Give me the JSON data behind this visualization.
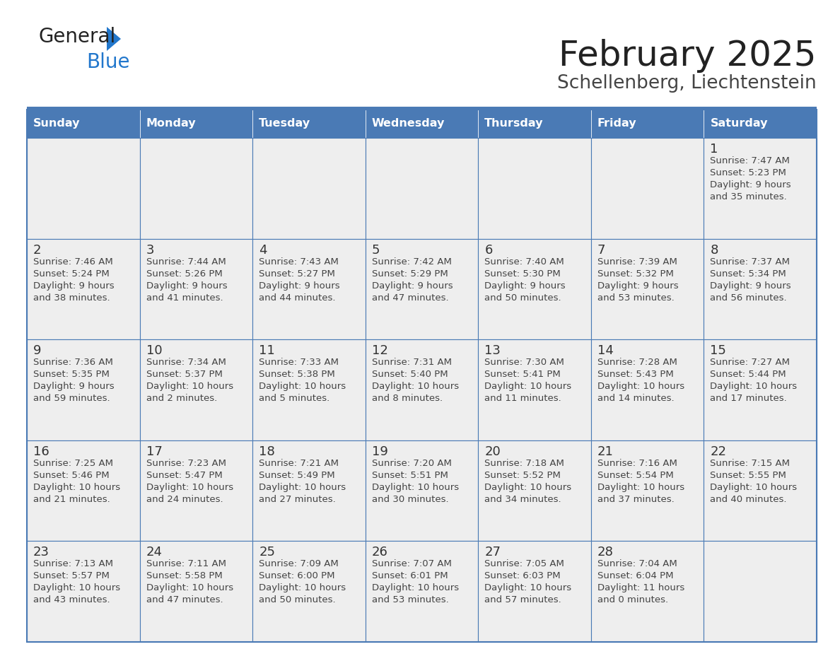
{
  "title": "February 2025",
  "subtitle": "Schellenberg, Liechtenstein",
  "days_of_week": [
    "Sunday",
    "Monday",
    "Tuesday",
    "Wednesday",
    "Thursday",
    "Friday",
    "Saturday"
  ],
  "header_bg_color": "#4a7ab5",
  "header_text_color": "#ffffff",
  "cell_bg_color": "#eeeeee",
  "border_color": "#4a7ab5",
  "day_number_color": "#333333",
  "text_color": "#444444",
  "title_color": "#222222",
  "subtitle_color": "#444444",
  "logo_general_color": "#222222",
  "logo_blue_color": "#2277cc",
  "weeks": [
    [
      {
        "day": null,
        "sunrise": null,
        "sunset": null,
        "daylight_line1": null,
        "daylight_line2": null
      },
      {
        "day": null,
        "sunrise": null,
        "sunset": null,
        "daylight_line1": null,
        "daylight_line2": null
      },
      {
        "day": null,
        "sunrise": null,
        "sunset": null,
        "daylight_line1": null,
        "daylight_line2": null
      },
      {
        "day": null,
        "sunrise": null,
        "sunset": null,
        "daylight_line1": null,
        "daylight_line2": null
      },
      {
        "day": null,
        "sunrise": null,
        "sunset": null,
        "daylight_line1": null,
        "daylight_line2": null
      },
      {
        "day": null,
        "sunrise": null,
        "sunset": null,
        "daylight_line1": null,
        "daylight_line2": null
      },
      {
        "day": 1,
        "sunrise": "7:47 AM",
        "sunset": "5:23 PM",
        "daylight_line1": "Daylight: 9 hours",
        "daylight_line2": "and 35 minutes."
      }
    ],
    [
      {
        "day": 2,
        "sunrise": "7:46 AM",
        "sunset": "5:24 PM",
        "daylight_line1": "Daylight: 9 hours",
        "daylight_line2": "and 38 minutes."
      },
      {
        "day": 3,
        "sunrise": "7:44 AM",
        "sunset": "5:26 PM",
        "daylight_line1": "Daylight: 9 hours",
        "daylight_line2": "and 41 minutes."
      },
      {
        "day": 4,
        "sunrise": "7:43 AM",
        "sunset": "5:27 PM",
        "daylight_line1": "Daylight: 9 hours",
        "daylight_line2": "and 44 minutes."
      },
      {
        "day": 5,
        "sunrise": "7:42 AM",
        "sunset": "5:29 PM",
        "daylight_line1": "Daylight: 9 hours",
        "daylight_line2": "and 47 minutes."
      },
      {
        "day": 6,
        "sunrise": "7:40 AM",
        "sunset": "5:30 PM",
        "daylight_line1": "Daylight: 9 hours",
        "daylight_line2": "and 50 minutes."
      },
      {
        "day": 7,
        "sunrise": "7:39 AM",
        "sunset": "5:32 PM",
        "daylight_line1": "Daylight: 9 hours",
        "daylight_line2": "and 53 minutes."
      },
      {
        "day": 8,
        "sunrise": "7:37 AM",
        "sunset": "5:34 PM",
        "daylight_line1": "Daylight: 9 hours",
        "daylight_line2": "and 56 minutes."
      }
    ],
    [
      {
        "day": 9,
        "sunrise": "7:36 AM",
        "sunset": "5:35 PM",
        "daylight_line1": "Daylight: 9 hours",
        "daylight_line2": "and 59 minutes."
      },
      {
        "day": 10,
        "sunrise": "7:34 AM",
        "sunset": "5:37 PM",
        "daylight_line1": "Daylight: 10 hours",
        "daylight_line2": "and 2 minutes."
      },
      {
        "day": 11,
        "sunrise": "7:33 AM",
        "sunset": "5:38 PM",
        "daylight_line1": "Daylight: 10 hours",
        "daylight_line2": "and 5 minutes."
      },
      {
        "day": 12,
        "sunrise": "7:31 AM",
        "sunset": "5:40 PM",
        "daylight_line1": "Daylight: 10 hours",
        "daylight_line2": "and 8 minutes."
      },
      {
        "day": 13,
        "sunrise": "7:30 AM",
        "sunset": "5:41 PM",
        "daylight_line1": "Daylight: 10 hours",
        "daylight_line2": "and 11 minutes."
      },
      {
        "day": 14,
        "sunrise": "7:28 AM",
        "sunset": "5:43 PM",
        "daylight_line1": "Daylight: 10 hours",
        "daylight_line2": "and 14 minutes."
      },
      {
        "day": 15,
        "sunrise": "7:27 AM",
        "sunset": "5:44 PM",
        "daylight_line1": "Daylight: 10 hours",
        "daylight_line2": "and 17 minutes."
      }
    ],
    [
      {
        "day": 16,
        "sunrise": "7:25 AM",
        "sunset": "5:46 PM",
        "daylight_line1": "Daylight: 10 hours",
        "daylight_line2": "and 21 minutes."
      },
      {
        "day": 17,
        "sunrise": "7:23 AM",
        "sunset": "5:47 PM",
        "daylight_line1": "Daylight: 10 hours",
        "daylight_line2": "and 24 minutes."
      },
      {
        "day": 18,
        "sunrise": "7:21 AM",
        "sunset": "5:49 PM",
        "daylight_line1": "Daylight: 10 hours",
        "daylight_line2": "and 27 minutes."
      },
      {
        "day": 19,
        "sunrise": "7:20 AM",
        "sunset": "5:51 PM",
        "daylight_line1": "Daylight: 10 hours",
        "daylight_line2": "and 30 minutes."
      },
      {
        "day": 20,
        "sunrise": "7:18 AM",
        "sunset": "5:52 PM",
        "daylight_line1": "Daylight: 10 hours",
        "daylight_line2": "and 34 minutes."
      },
      {
        "day": 21,
        "sunrise": "7:16 AM",
        "sunset": "5:54 PM",
        "daylight_line1": "Daylight: 10 hours",
        "daylight_line2": "and 37 minutes."
      },
      {
        "day": 22,
        "sunrise": "7:15 AM",
        "sunset": "5:55 PM",
        "daylight_line1": "Daylight: 10 hours",
        "daylight_line2": "and 40 minutes."
      }
    ],
    [
      {
        "day": 23,
        "sunrise": "7:13 AM",
        "sunset": "5:57 PM",
        "daylight_line1": "Daylight: 10 hours",
        "daylight_line2": "and 43 minutes."
      },
      {
        "day": 24,
        "sunrise": "7:11 AM",
        "sunset": "5:58 PM",
        "daylight_line1": "Daylight: 10 hours",
        "daylight_line2": "and 47 minutes."
      },
      {
        "day": 25,
        "sunrise": "7:09 AM",
        "sunset": "6:00 PM",
        "daylight_line1": "Daylight: 10 hours",
        "daylight_line2": "and 50 minutes."
      },
      {
        "day": 26,
        "sunrise": "7:07 AM",
        "sunset": "6:01 PM",
        "daylight_line1": "Daylight: 10 hours",
        "daylight_line2": "and 53 minutes."
      },
      {
        "day": 27,
        "sunrise": "7:05 AM",
        "sunset": "6:03 PM",
        "daylight_line1": "Daylight: 10 hours",
        "daylight_line2": "and 57 minutes."
      },
      {
        "day": 28,
        "sunrise": "7:04 AM",
        "sunset": "6:04 PM",
        "daylight_line1": "Daylight: 11 hours",
        "daylight_line2": "and 0 minutes."
      },
      {
        "day": null,
        "sunrise": null,
        "sunset": null,
        "daylight_line1": null,
        "daylight_line2": null
      }
    ]
  ]
}
